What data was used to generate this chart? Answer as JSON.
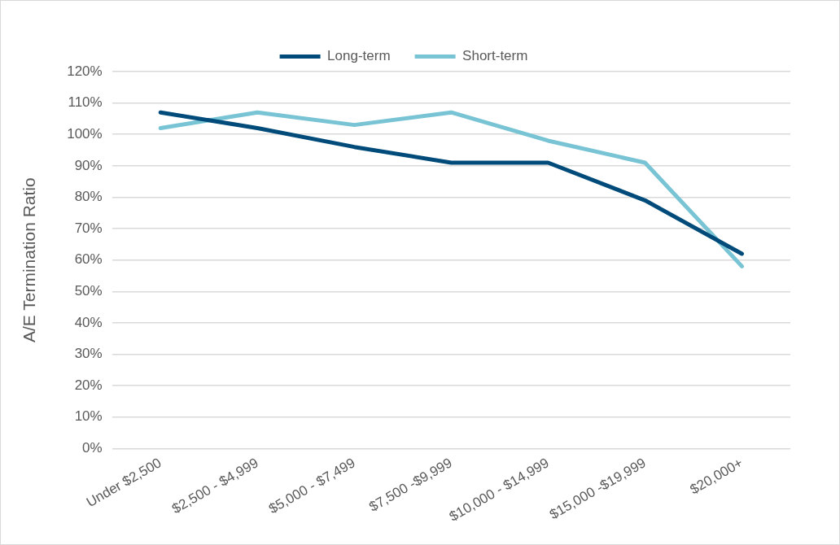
{
  "chart_data": {
    "type": "line",
    "ylabel": "A/E Termination Ratio",
    "categories": [
      "Under $2,500",
      "$2,500 - $4,999",
      "$5,000 - $7,499",
      "$7,500 -$9,999",
      "$10,000 - $14,999",
      "$15,000 -$19,999",
      "$20,000+"
    ],
    "series": [
      {
        "name": "Long-term",
        "color": "#004b7a",
        "values": [
          107,
          102,
          96,
          91,
          91,
          79,
          62
        ]
      },
      {
        "name": "Short-term",
        "color": "#78c4d4",
        "values": [
          102,
          107,
          103,
          107,
          98,
          91,
          58
        ]
      }
    ],
    "ylim": [
      0,
      120
    ],
    "yticks": [
      {
        "value": 0,
        "label": "0%"
      },
      {
        "value": 10,
        "label": "10%"
      },
      {
        "value": 20,
        "label": "20%"
      },
      {
        "value": 30,
        "label": "30%"
      },
      {
        "value": 40,
        "label": "40%"
      },
      {
        "value": 50,
        "label": "50%"
      },
      {
        "value": 60,
        "label": "60%"
      },
      {
        "value": 70,
        "label": "70%"
      },
      {
        "value": 80,
        "label": "80%"
      },
      {
        "value": 90,
        "label": "90%"
      },
      {
        "value": 100,
        "label": "100%"
      },
      {
        "value": 110,
        "label": "110%"
      },
      {
        "value": 120,
        "label": "120%"
      }
    ],
    "grid": "y",
    "legend": "top",
    "marker": "none",
    "line_style": "solid"
  }
}
